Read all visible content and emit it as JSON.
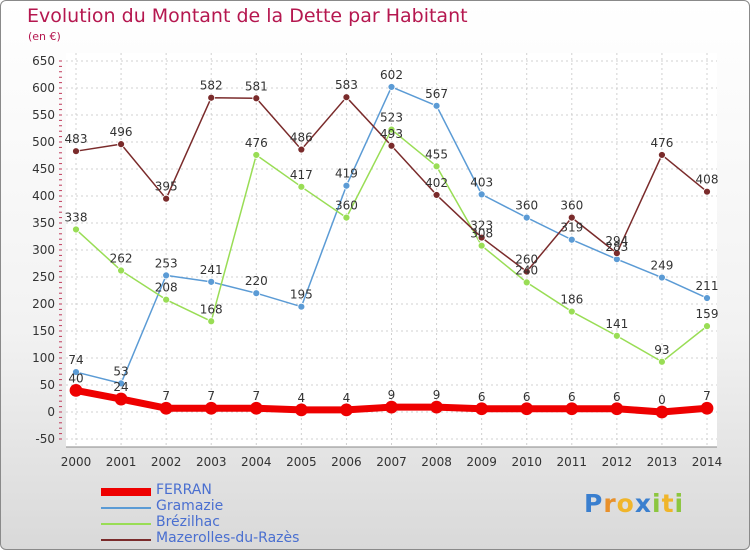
{
  "header": {
    "title": "Evolution du Montant de la Dette par Habitant",
    "subtitle": "(en €)"
  },
  "logo": {
    "letters": [
      "P",
      "r",
      "o",
      "x",
      "i",
      "t",
      "i"
    ],
    "colors": [
      "#3a7fcf",
      "#e8902a",
      "#f0b52a",
      "#3a7fcf",
      "#8cc63f",
      "#f0b52a",
      "#8cc63f"
    ]
  },
  "chart_data": {
    "type": "line",
    "title": "Evolution du Montant de la Dette par Habitant",
    "subtitle": "(en €)",
    "xlabel": "",
    "ylabel": "",
    "x": [
      "2000",
      "2001",
      "2002",
      "2003",
      "2004",
      "2005",
      "2006",
      "2007",
      "2008",
      "2009",
      "2010",
      "2011",
      "2012",
      "2013",
      "2014"
    ],
    "yticks": [
      -50,
      0,
      50,
      100,
      150,
      200,
      250,
      300,
      350,
      400,
      450,
      500,
      550,
      600,
      650
    ],
    "ylim": [
      -50,
      650
    ],
    "grid": true,
    "legend_position": "bottom",
    "series": [
      {
        "name": "FERRAN",
        "color": "#ee0000",
        "thick": true,
        "values": [
          40,
          24,
          7,
          7,
          7,
          4,
          4,
          9,
          9,
          6,
          6,
          6,
          6,
          0,
          7
        ],
        "labels": [
          "40",
          "24",
          "7",
          "7",
          "7",
          "4",
          "4",
          "9",
          "9",
          "6",
          "6",
          "6",
          "6",
          "0",
          "7"
        ]
      },
      {
        "name": "Gramazie",
        "color": "#5b9bd5",
        "values": [
          74,
          53,
          253,
          241,
          220,
          195,
          419,
          602,
          567,
          403,
          360,
          319,
          283,
          249,
          211
        ],
        "labels": [
          "74",
          "53",
          "253",
          "241",
          "220",
          "195",
          "419",
          "602",
          "567",
          "403",
          "360",
          "319",
          "283",
          "249",
          "211"
        ]
      },
      {
        "name": "Brézilhac",
        "color": "#99dd55",
        "values": [
          338,
          262,
          208,
          168,
          476,
          417,
          360,
          523,
          455,
          308,
          240,
          186,
          141,
          93,
          159
        ],
        "labels": [
          "338",
          "262",
          "208",
          "168",
          "476",
          "417",
          "360",
          "523",
          "455",
          "308",
          "240",
          "186",
          "141",
          "93",
          "159"
        ]
      },
      {
        "name": "Mazerolles-du-Razès",
        "color": "#7a2b2b",
        "values": [
          483,
          496,
          395,
          582,
          581,
          486,
          583,
          493,
          402,
          323,
          260,
          360,
          294,
          476,
          408
        ],
        "labels": [
          "483",
          "496",
          "395",
          "582",
          "581",
          "486",
          "583",
          "493",
          "402",
          "323",
          "260",
          "360",
          "294",
          "476",
          "408"
        ]
      }
    ]
  }
}
